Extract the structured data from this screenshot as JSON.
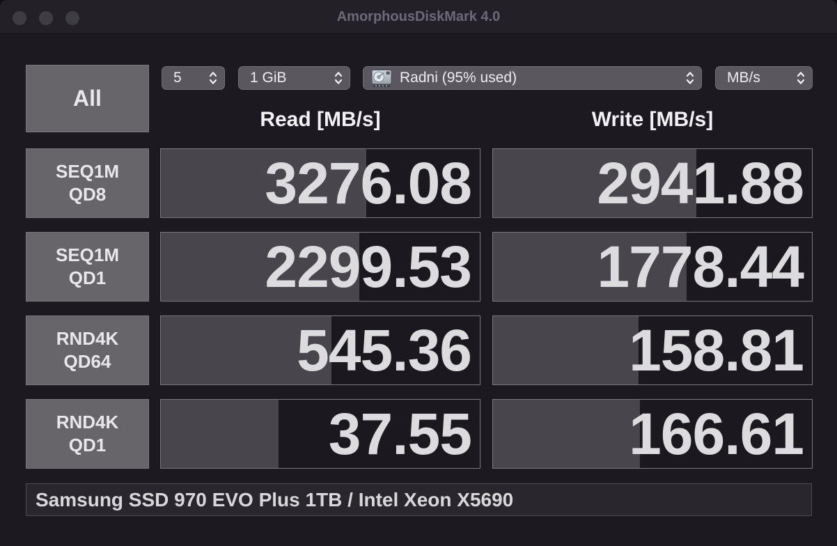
{
  "window": {
    "title": "AmorphousDiskMark 4.0"
  },
  "controls": {
    "trial_count": "5",
    "test_size": "1 GiB",
    "target_disk": "Radni (95% used)",
    "unit": "MB/s"
  },
  "all_button_label": "All",
  "columns": {
    "read": "Read [MB/s]",
    "write": "Write [MB/s]"
  },
  "rows": [
    {
      "test": "SEQ1M",
      "qd": "QD8",
      "read": "3276.08",
      "write": "2941.88",
      "read_fill_pct": 64.5,
      "write_fill_pct": 63.8
    },
    {
      "test": "SEQ1M",
      "qd": "QD1",
      "read": "2299.53",
      "write": "1778.44",
      "read_fill_pct": 62.3,
      "write_fill_pct": 60.7
    },
    {
      "test": "RND4K",
      "qd": "QD64",
      "read": "545.36",
      "write": "158.81",
      "read_fill_pct": 53.4,
      "write_fill_pct": 45.7
    },
    {
      "test": "RND4K",
      "qd": "QD1",
      "read": "37.55",
      "write": "166.61",
      "read_fill_pct": 36.8,
      "write_fill_pct": 46.0
    }
  ],
  "chart_data": {
    "type": "bar",
    "title": "AmorphousDiskMark results",
    "categories": [
      "SEQ1M QD8",
      "SEQ1M QD1",
      "RND4K QD64",
      "RND4K QD1"
    ],
    "series": [
      {
        "name": "Read",
        "values": [
          3276.08,
          2299.53,
          545.36,
          37.55
        ]
      },
      {
        "name": "Write",
        "values": [
          2941.88,
          1778.44,
          158.81,
          166.61
        ]
      }
    ],
    "unit": "MB/s",
    "bar_scale": "logarithmic, fill = (log10(value)+1)/7"
  },
  "footer": {
    "device_info": "Samsung SSD 970 EVO Plus 1TB / Intel Xeon X5690"
  },
  "colors": {
    "window_bg": "#1c1a20",
    "titlebar_bg": "#232127",
    "button_gray": "#67656a",
    "dropdown_gray": "#5a585e",
    "cell_fill": "#48464c",
    "cell_border": "#7a787e",
    "value_text": "#dcdbdd",
    "footer_bg": "#29272d"
  }
}
